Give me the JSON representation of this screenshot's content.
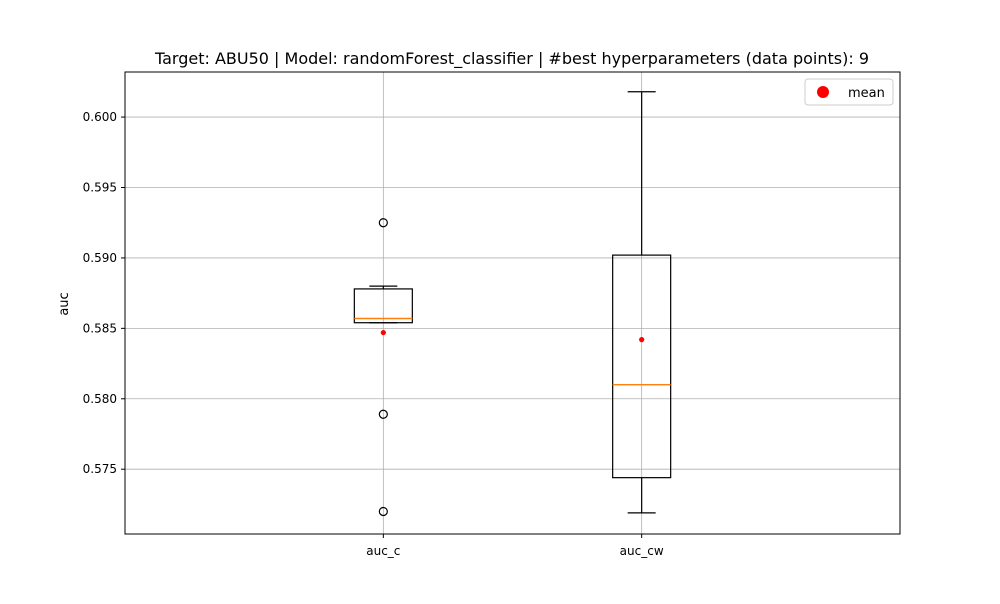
{
  "chart_data": {
    "type": "box",
    "title": "Target: ABU50 | Model: randomForest_classifier | #best hyperparameters (data points): 9",
    "xlabel": "",
    "ylabel": "auc",
    "ylim": [
      0.5704,
      0.6032
    ],
    "yticks": [
      0.575,
      0.58,
      0.585,
      0.59,
      0.595,
      0.6
    ],
    "ytick_labels": [
      "0.575",
      "0.580",
      "0.585",
      "0.590",
      "0.595",
      "0.600"
    ],
    "grid": true,
    "legend": {
      "position": "top-right",
      "entries": [
        {
          "label": "mean",
          "marker": "circle",
          "color": "#ff0000"
        }
      ]
    },
    "categories": [
      "auc_c",
      "auc_cw"
    ],
    "boxes": [
      {
        "name": "auc_c",
        "whisker_low": 0.5854,
        "q1": 0.5854,
        "median": 0.5857,
        "q3": 0.5878,
        "whisker_high": 0.588,
        "mean": 0.5847,
        "outliers": [
          0.5925,
          0.5789,
          0.572
        ]
      },
      {
        "name": "auc_cw",
        "whisker_low": 0.5719,
        "q1": 0.5744,
        "median": 0.581,
        "q3": 0.5902,
        "whisker_high": 0.6018,
        "mean": 0.5842,
        "outliers": []
      }
    ],
    "colors": {
      "box": "#000000",
      "median": "#ff7f0e",
      "mean": "#ff0000",
      "grid": "#b0b0b0"
    }
  }
}
